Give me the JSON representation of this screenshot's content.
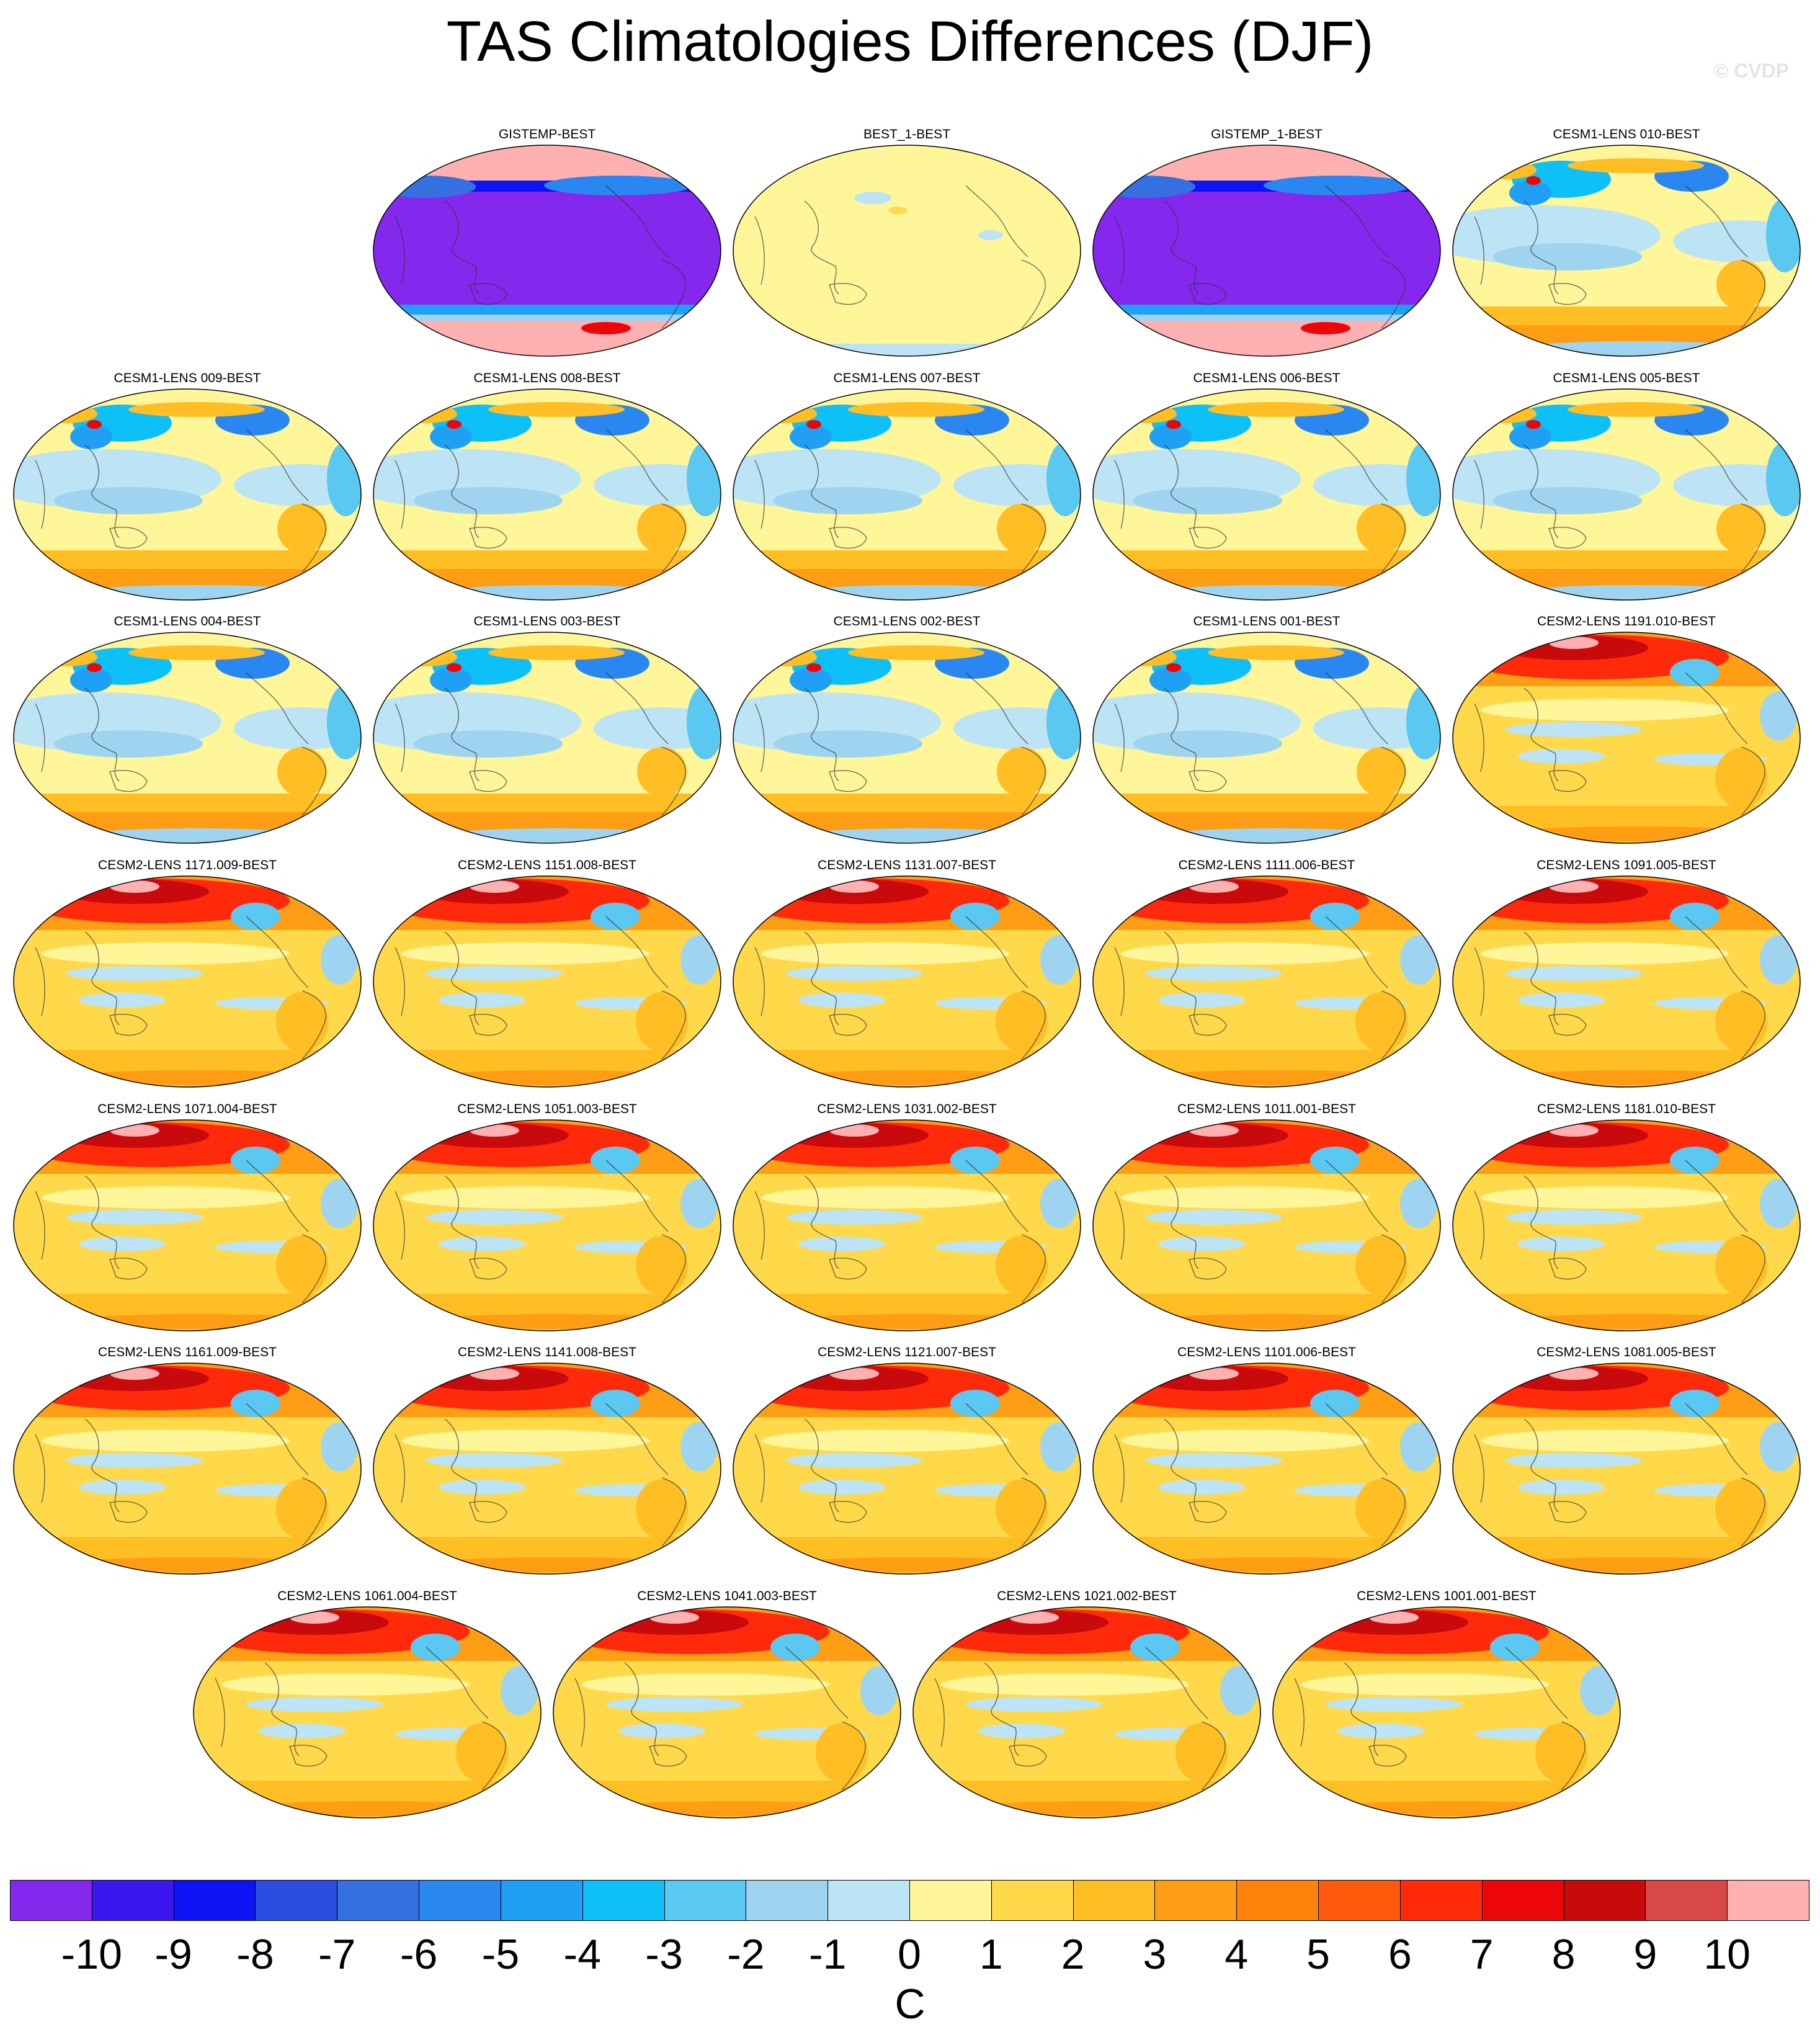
{
  "title": "TAS Climatologies Differences (DJF)",
  "watermark": "© CVDP",
  "colorbar": {
    "unit": "C",
    "ticks": [
      "-10",
      "-9",
      "-8",
      "-7",
      "-6",
      "-5",
      "-4",
      "-3",
      "-2",
      "-1",
      "0",
      "1",
      "2",
      "3",
      "4",
      "5",
      "6",
      "7",
      "8",
      "9",
      "10"
    ],
    "colors": [
      "#8428ee",
      "#3a16f0",
      "#0c14f5",
      "#2a4ce0",
      "#3470e0",
      "#2a86f0",
      "#1fa0f5",
      "#0ec0f8",
      "#5ac8f0",
      "#9ed4f0",
      "#bce4f4",
      "#fff69a",
      "#ffd94a",
      "#ffbe23",
      "#ff9d14",
      "#ff820b",
      "#ff5a0c",
      "#ff2a0a",
      "#ec0608",
      "#c80a0c",
      "#d94848",
      "#ffb0b0"
    ]
  },
  "panels": [
    {
      "label": "GISTEMP-BEST",
      "style": "missing"
    },
    {
      "label": "BEST_1-BEST",
      "style": "flat"
    },
    {
      "label": "GISTEMP_1-BEST",
      "style": "missing"
    },
    {
      "label": "CESM1-LENS 010-BEST",
      "style": "cesm1"
    },
    {
      "label": "CESM1-LENS 009-BEST",
      "style": "cesm1"
    },
    {
      "label": "CESM1-LENS 008-BEST",
      "style": "cesm1"
    },
    {
      "label": "CESM1-LENS 007-BEST",
      "style": "cesm1"
    },
    {
      "label": "CESM1-LENS 006-BEST",
      "style": "cesm1"
    },
    {
      "label": "CESM1-LENS 005-BEST",
      "style": "cesm1"
    },
    {
      "label": "CESM1-LENS 004-BEST",
      "style": "cesm1"
    },
    {
      "label": "CESM1-LENS 003-BEST",
      "style": "cesm1"
    },
    {
      "label": "CESM1-LENS 002-BEST",
      "style": "cesm1"
    },
    {
      "label": "CESM1-LENS 001-BEST",
      "style": "cesm1"
    },
    {
      "label": "CESM2-LENS 1191.010-BEST",
      "style": "cesm2"
    },
    {
      "label": "CESM2-LENS 1171.009-BEST",
      "style": "cesm2"
    },
    {
      "label": "CESM2-LENS 1151.008-BEST",
      "style": "cesm2"
    },
    {
      "label": "CESM2-LENS 1131.007-BEST",
      "style": "cesm2"
    },
    {
      "label": "CESM2-LENS 1111.006-BEST",
      "style": "cesm2"
    },
    {
      "label": "CESM2-LENS 1091.005-BEST",
      "style": "cesm2"
    },
    {
      "label": "CESM2-LENS 1071.004-BEST",
      "style": "cesm2"
    },
    {
      "label": "CESM2-LENS 1051.003-BEST",
      "style": "cesm2"
    },
    {
      "label": "CESM2-LENS 1031.002-BEST",
      "style": "cesm2"
    },
    {
      "label": "CESM2-LENS 1011.001-BEST",
      "style": "cesm2"
    },
    {
      "label": "CESM2-LENS 1181.010-BEST",
      "style": "cesm2"
    },
    {
      "label": "CESM2-LENS 1161.009-BEST",
      "style": "cesm2"
    },
    {
      "label": "CESM2-LENS 1141.008-BEST",
      "style": "cesm2"
    },
    {
      "label": "CESM2-LENS 1121.007-BEST",
      "style": "cesm2"
    },
    {
      "label": "CESM2-LENS 1101.006-BEST",
      "style": "cesm2"
    },
    {
      "label": "CESM2-LENS 1081.005-BEST",
      "style": "cesm2"
    },
    {
      "label": "CESM2-LENS 1061.004-BEST",
      "style": "cesm2"
    },
    {
      "label": "CESM2-LENS 1041.003-BEST",
      "style": "cesm2"
    },
    {
      "label": "CESM2-LENS 1021.002-BEST",
      "style": "cesm2"
    },
    {
      "label": "CESM2-LENS 1001.001-BEST",
      "style": "cesm2"
    }
  ]
}
